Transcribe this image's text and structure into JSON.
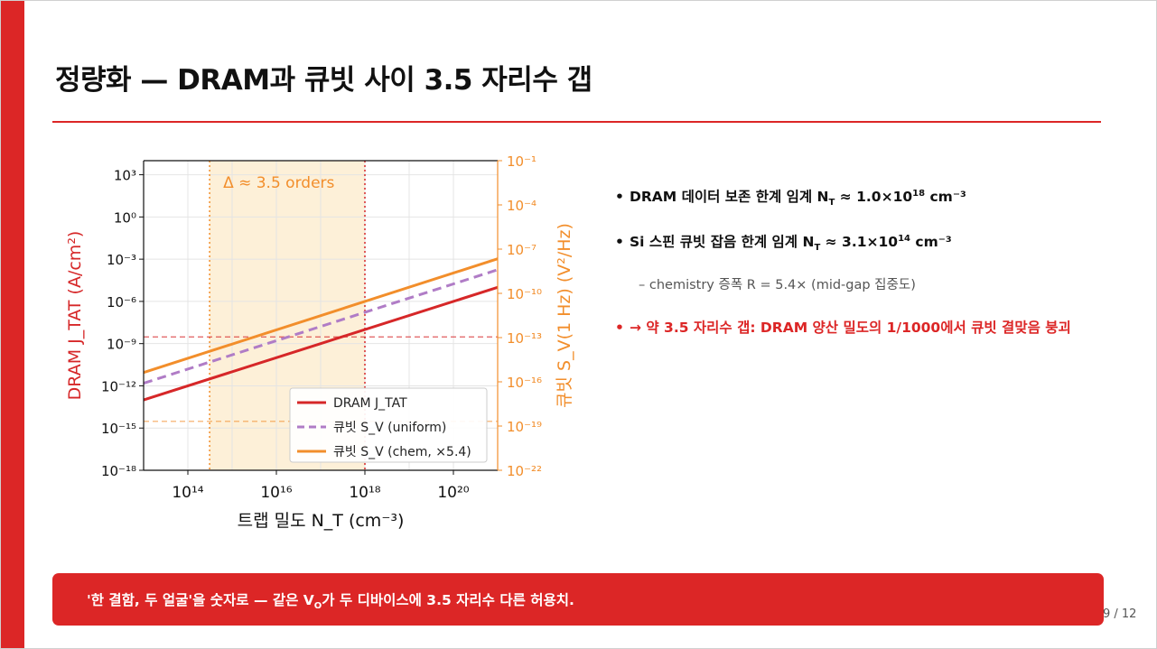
{
  "slide": {
    "title": "정량화 — DRAM과 큐빗 사이 3.5 자리수 갭",
    "page": "9 / 12"
  },
  "bullets": {
    "b1": {
      "text": "DRAM 데이터 보존 한계 임계 N",
      "sub": "T",
      "mid": " ≈ 1.0×10",
      "sup": "18",
      "tail": " cm⁻³"
    },
    "b2": {
      "text": "Si 스핀 큐빗 잡음 한계 임계 N",
      "sub": "T",
      "mid": " ≈ 3.1×10",
      "sup": "14",
      "tail": " cm⁻³"
    },
    "b3": {
      "text": "– chemistry 증폭 R = 5.4× (mid-gap 집중도)"
    },
    "b4": {
      "text": "→ 약 3.5 자리수 갭: DRAM 양산 밀도의 1/1000에서 큐빗 결맞음 붕괴"
    }
  },
  "callout": {
    "pre": "'한 결함, 두 얼굴'을 숫자로 — 같은 V",
    "sub": "O",
    "post": "가 두 디바이스에 3.5 자리수 다른 허용치."
  },
  "chart_data": {
    "type": "line",
    "xlabel": "트랩 밀도 N_T (cm⁻³)",
    "ylabel_left": "DRAM J_TAT (A/cm²)",
    "ylabel_right": "큐빗 S_V(1 Hz) (V²/Hz)",
    "x_scale": "log",
    "y_scale": "log",
    "xlim": [
      10000000000000.0,
      1e+21
    ],
    "ylim_left": [
      1e-18,
      10000.0
    ],
    "ylim_right": [
      1e-22,
      0.1
    ],
    "x_ticks": [
      "10¹⁴",
      "10¹⁶",
      "10¹⁸",
      "10²⁰"
    ],
    "y_left_ticks": [
      "10³",
      "10⁰",
      "10⁻³",
      "10⁻⁶",
      "10⁻⁹",
      "10⁻¹²",
      "10⁻¹⁵",
      "10⁻¹⁸"
    ],
    "y_right_ticks": [
      "10⁻¹",
      "10⁻⁴",
      "10⁻⁷",
      "10⁻¹⁰",
      "10⁻¹³",
      "10⁻¹⁶",
      "10⁻¹⁹",
      "10⁻²²"
    ],
    "series": [
      {
        "name": "DRAM J_TAT",
        "axis": "left",
        "color": "#d62728",
        "style": "solid",
        "x": [
          10000000000000.0,
          1e+21
        ],
        "y": [
          1e-13,
          1e-05
        ]
      },
      {
        "name": "큐빗 S_V (uniform)",
        "axis": "right",
        "color": "#b07cc6",
        "style": "dashed",
        "x": [
          10000000000000.0,
          1e+21
        ],
        "y": [
          8e-17,
          4e-09
        ]
      },
      {
        "name": "큐빗 S_V (chem, ×5.4)",
        "axis": "right",
        "color": "#f28e2b",
        "style": "solid",
        "x": [
          10000000000000.0,
          1e+21
        ],
        "y": [
          4.3e-16,
          2.2e-08
        ]
      }
    ],
    "thresholds": {
      "dram_x": 1e+18,
      "qubit_x": 310000000000000.0,
      "dram_y": 3e-09,
      "qubit_y": 3e-15
    },
    "annotation": "Δ  ≈ 3.5 orders",
    "shaded_region": [
      310000000000000.0,
      1e+18
    ],
    "legend_position": "lower-right",
    "grid": true,
    "colors": {
      "left_axis": "#d62728",
      "right_axis": "#f28e2b",
      "shade": "#fdf0d8"
    }
  }
}
